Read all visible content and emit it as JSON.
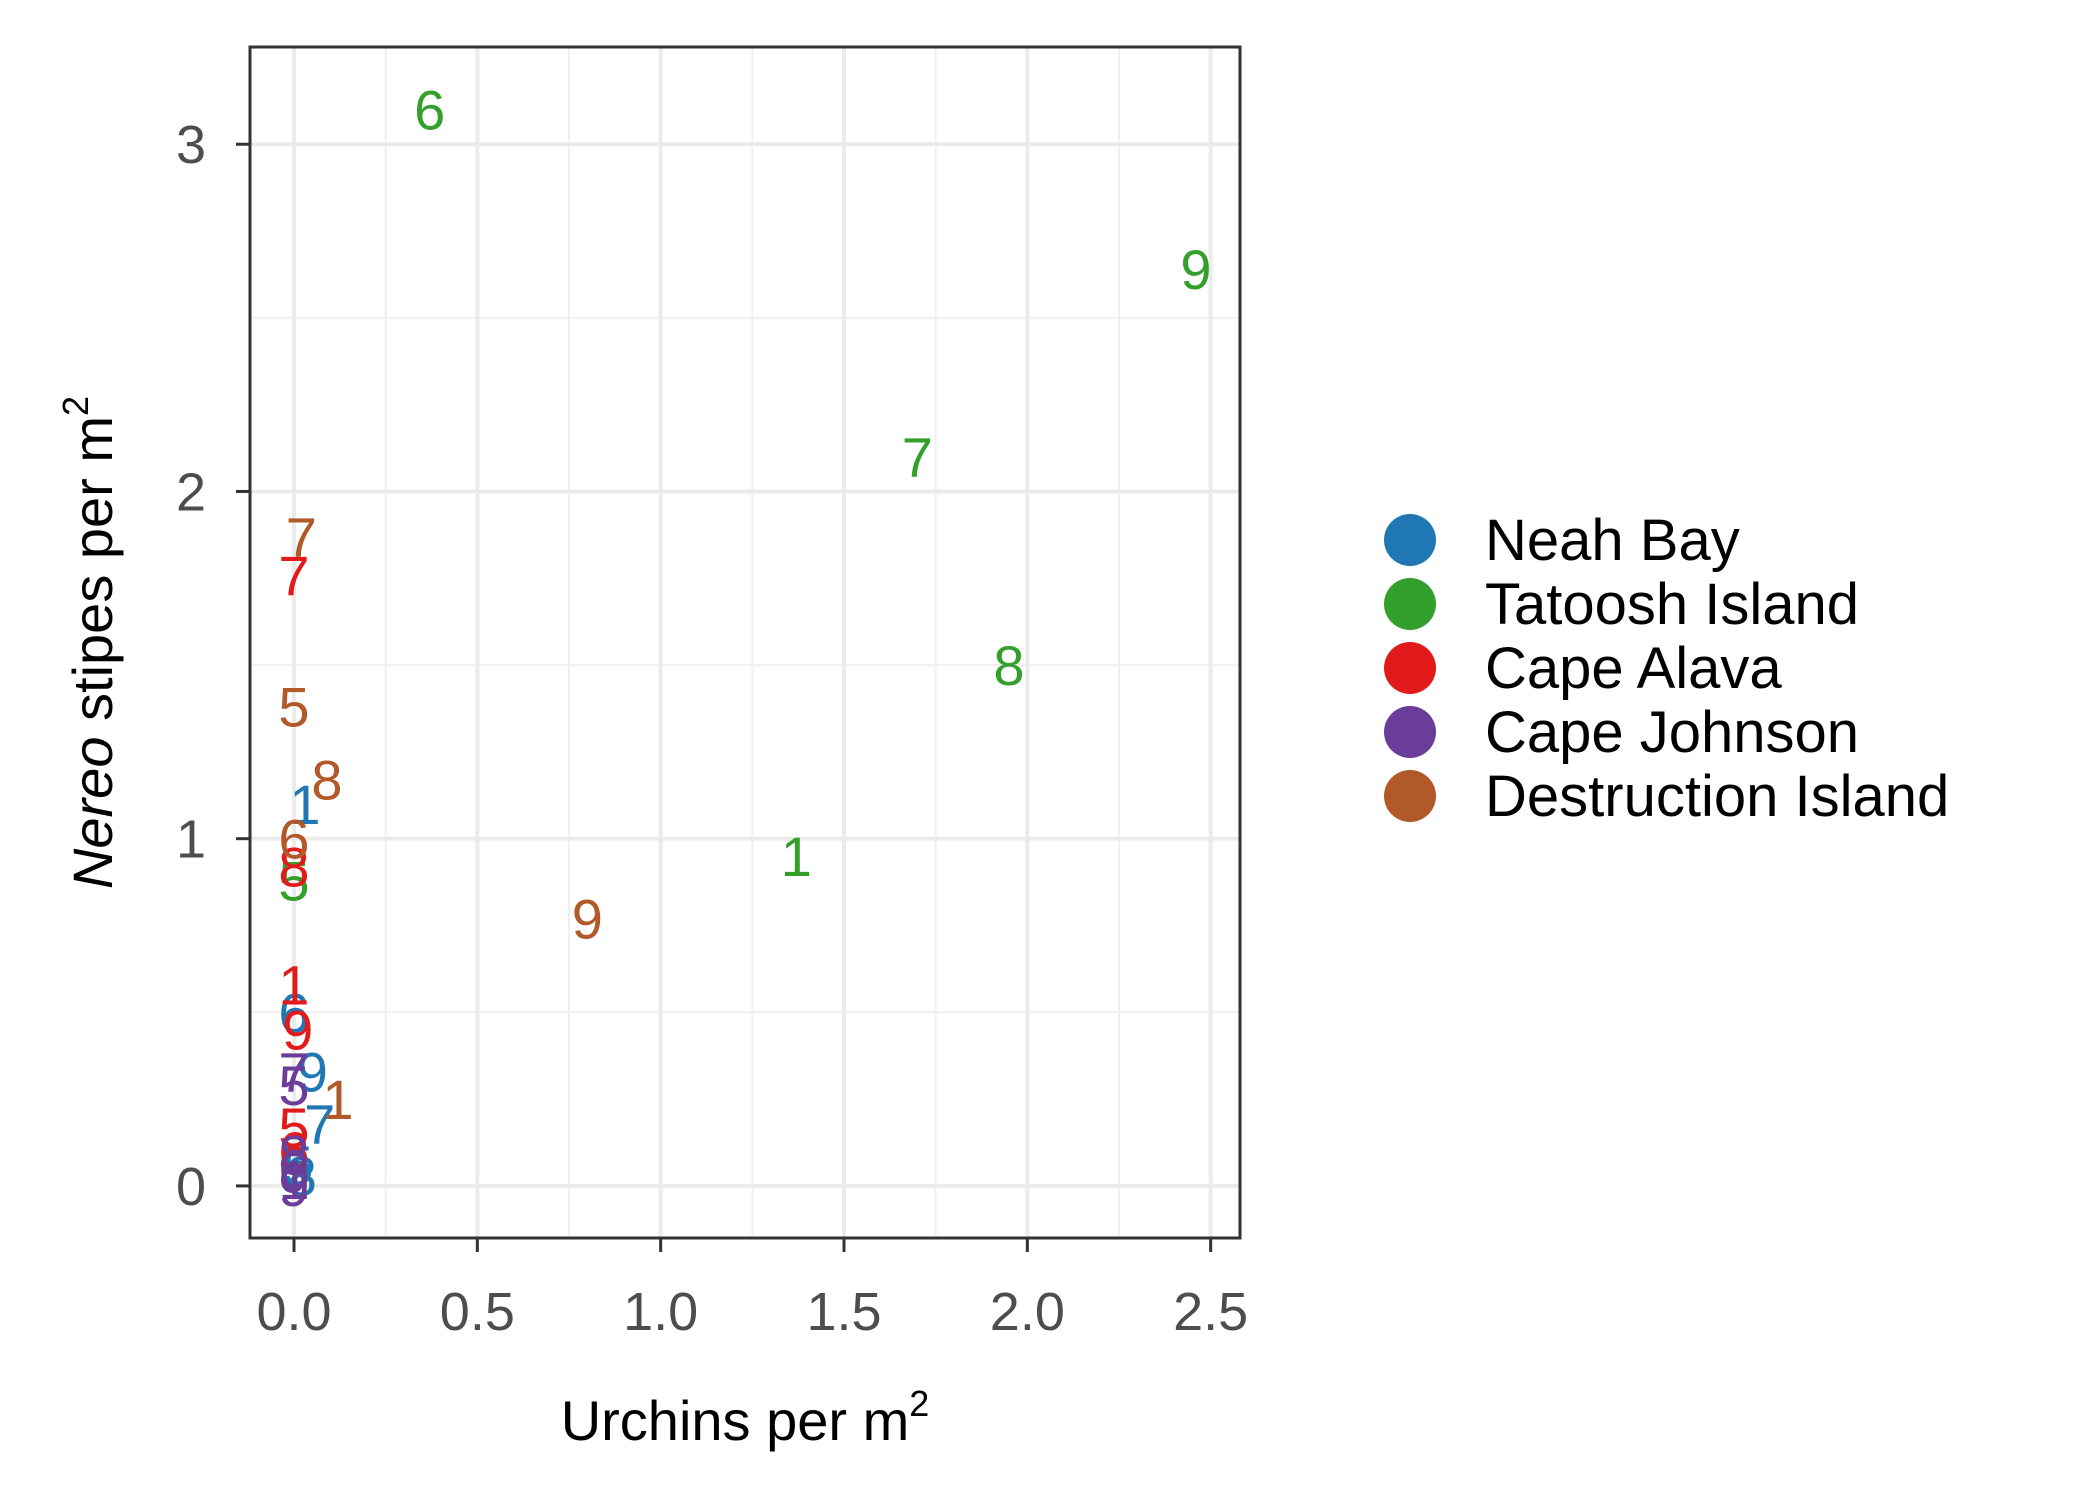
{
  "chart_data": {
    "type": "scatter",
    "xlabel": {
      "base": "Urchins per m",
      "sup": "2"
    },
    "ylabel": {
      "italic": "Nereo",
      "rest": " stipes per m",
      "sup": "2"
    },
    "xlim": [
      -0.12,
      2.58
    ],
    "ylim": [
      -0.15,
      3.28
    ],
    "x_ticks": [
      {
        "value": 0.0,
        "label": "0.0"
      },
      {
        "value": 0.5,
        "label": "0.5"
      },
      {
        "value": 1.0,
        "label": "1.0"
      },
      {
        "value": 1.5,
        "label": "1.5"
      },
      {
        "value": 2.0,
        "label": "2.0"
      },
      {
        "value": 2.5,
        "label": "2.5"
      }
    ],
    "y_ticks": [
      {
        "value": 0,
        "label": "0"
      },
      {
        "value": 1,
        "label": "1"
      },
      {
        "value": 2,
        "label": "2"
      },
      {
        "value": 3,
        "label": "3"
      }
    ],
    "grid": true,
    "legend_position": "right",
    "series": [
      {
        "name": "Neah Bay",
        "color": "#1f78b4",
        "points": [
          {
            "x": 0.03,
            "y": 1.1,
            "label": "1"
          },
          {
            "x": 0.0,
            "y": 0.5,
            "label": "6"
          },
          {
            "x": 0.05,
            "y": 0.33,
            "label": "9"
          },
          {
            "x": 0.07,
            "y": 0.18,
            "label": "7"
          },
          {
            "x": 0.01,
            "y": 0.06,
            "label": "5"
          },
          {
            "x": 0.02,
            "y": 0.03,
            "label": "8"
          }
        ]
      },
      {
        "name": "Tatoosh Island",
        "color": "#33a02c",
        "points": [
          {
            "x": 0.37,
            "y": 3.1,
            "label": "6"
          },
          {
            "x": 2.46,
            "y": 2.64,
            "label": "9"
          },
          {
            "x": 1.7,
            "y": 2.1,
            "label": "7"
          },
          {
            "x": 1.95,
            "y": 1.5,
            "label": "8"
          },
          {
            "x": 1.37,
            "y": 0.95,
            "label": "1"
          },
          {
            "x": 0.0,
            "y": 0.88,
            "label": "5"
          }
        ]
      },
      {
        "name": "Cape Alava",
        "color": "#e31a1c",
        "points": [
          {
            "x": 0.0,
            "y": 1.76,
            "label": "7"
          },
          {
            "x": 0.0,
            "y": 0.92,
            "label": "8"
          },
          {
            "x": 0.0,
            "y": 0.58,
            "label": "1"
          },
          {
            "x": 0.01,
            "y": 0.45,
            "label": "9"
          },
          {
            "x": 0.0,
            "y": 0.17,
            "label": "5"
          },
          {
            "x": 0.0,
            "y": 0.1,
            "label": "6"
          }
        ]
      },
      {
        "name": "Cape Johnson",
        "color": "#6a3d9a",
        "points": [
          {
            "x": 0.0,
            "y": 0.33,
            "label": "7"
          },
          {
            "x": 0.0,
            "y": 0.29,
            "label": "5"
          },
          {
            "x": 0.0,
            "y": 0.09,
            "label": "8"
          },
          {
            "x": 0.0,
            "y": 0.05,
            "label": "6"
          },
          {
            "x": 0.0,
            "y": 0.02,
            "label": "1"
          },
          {
            "x": 0.0,
            "y": 0.0,
            "label": "9"
          }
        ]
      },
      {
        "name": "Destruction Island",
        "color": "#b15928",
        "points": [
          {
            "x": 0.02,
            "y": 1.87,
            "label": "7"
          },
          {
            "x": 0.0,
            "y": 1.38,
            "label": "5"
          },
          {
            "x": 0.09,
            "y": 1.17,
            "label": "8"
          },
          {
            "x": 0.0,
            "y": 1.0,
            "label": "6"
          },
          {
            "x": 0.8,
            "y": 0.77,
            "label": "9"
          },
          {
            "x": 0.12,
            "y": 0.25,
            "label": "1"
          }
        ]
      }
    ]
  }
}
